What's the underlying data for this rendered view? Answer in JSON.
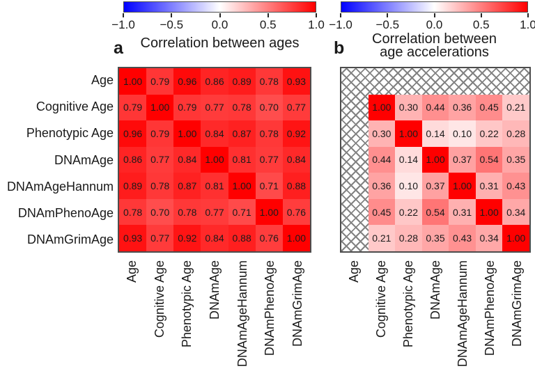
{
  "figure": {
    "background": "#ffffff",
    "text_color": "#1a1a1a",
    "heatmap_border_color": "#4d4d4d",
    "hatch_line_color": "#828282",
    "colorbar_border_color": "#4d4d4d",
    "colorbar_gradient": [
      "#0000ff",
      "#ffffff",
      "#ff0000"
    ]
  },
  "chart_data": [
    {
      "type": "heatmap",
      "panel_label": "a",
      "title_lines": [
        "Correlation between ages"
      ],
      "colormap": "blue-white-red",
      "color_range": [
        -1,
        1
      ],
      "colorbar_ticks": [
        "−1.0",
        "−0.5",
        "0.0",
        "0.5",
        "1.0"
      ],
      "row_labels": [
        "Age",
        "Cognitive Age",
        "Phenotypic Age",
        "DNAmAge",
        "DNAmAgeHannum",
        "DNAmPhenoAge",
        "DNAmGrimAge"
      ],
      "col_labels": [
        "Age",
        "Cognitive Age",
        "Phenotypic Age",
        "DNAmAge",
        "DNAmAgeHannum",
        "DNAmPhenoAge",
        "DNAmGrimAge"
      ],
      "show_row_labels": true,
      "masked_cells": "none",
      "values": [
        [
          1.0,
          0.79,
          0.96,
          0.86,
          0.89,
          0.78,
          0.93
        ],
        [
          0.79,
          1.0,
          0.79,
          0.77,
          0.78,
          0.7,
          0.77
        ],
        [
          0.96,
          0.79,
          1.0,
          0.84,
          0.87,
          0.78,
          0.92
        ],
        [
          0.86,
          0.77,
          0.84,
          1.0,
          0.81,
          0.77,
          0.84
        ],
        [
          0.89,
          0.78,
          0.87,
          0.81,
          1.0,
          0.71,
          0.88
        ],
        [
          0.78,
          0.7,
          0.78,
          0.77,
          0.71,
          1.0,
          0.76
        ],
        [
          0.93,
          0.77,
          0.92,
          0.84,
          0.88,
          0.76,
          1.0
        ]
      ]
    },
    {
      "type": "heatmap",
      "panel_label": "b",
      "title_lines": [
        "Correlation between",
        "age accelerations"
      ],
      "colormap": "blue-white-red",
      "color_range": [
        -1,
        1
      ],
      "colorbar_ticks": [
        "−1.0",
        "−0.5",
        "0.0",
        "0.5",
        "1.0"
      ],
      "row_labels": [
        "Age",
        "Cognitive Age",
        "Phenotypic Age",
        "DNAmAge",
        "DNAmAgeHannum",
        "DNAmPhenoAge",
        "DNAmGrimAge"
      ],
      "col_labels": [
        "Age",
        "Cognitive Age",
        "Phenotypic Age",
        "DNAmAge",
        "DNAmAgeHannum",
        "DNAmPhenoAge",
        "DNAmGrimAge"
      ],
      "show_row_labels": false,
      "masked_cells": "first row and first column hatched",
      "values": [
        [
          null,
          null,
          null,
          null,
          null,
          null,
          null
        ],
        [
          null,
          1.0,
          0.3,
          0.44,
          0.36,
          0.45,
          0.21
        ],
        [
          null,
          0.3,
          1.0,
          0.14,
          0.1,
          0.22,
          0.28
        ],
        [
          null,
          0.44,
          0.14,
          1.0,
          0.37,
          0.54,
          0.35
        ],
        [
          null,
          0.36,
          0.1,
          0.37,
          1.0,
          0.31,
          0.43
        ],
        [
          null,
          0.45,
          0.22,
          0.54,
          0.31,
          1.0,
          0.34
        ],
        [
          null,
          0.21,
          0.28,
          0.35,
          0.43,
          0.34,
          1.0
        ]
      ]
    }
  ]
}
